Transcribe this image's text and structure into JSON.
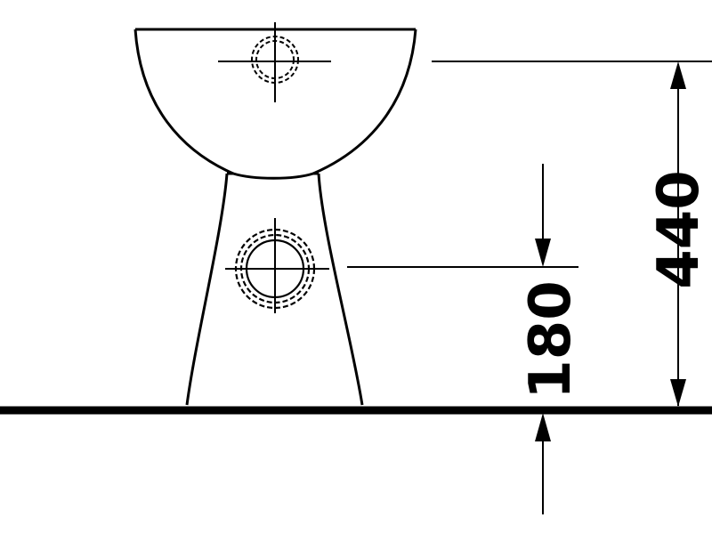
{
  "drawing": {
    "dimensions": [
      {
        "id": "overall_height",
        "value": "440"
      },
      {
        "id": "outlet_height",
        "value": "180"
      }
    ],
    "colors": {
      "line": "#000000",
      "background": "#ffffff"
    }
  }
}
